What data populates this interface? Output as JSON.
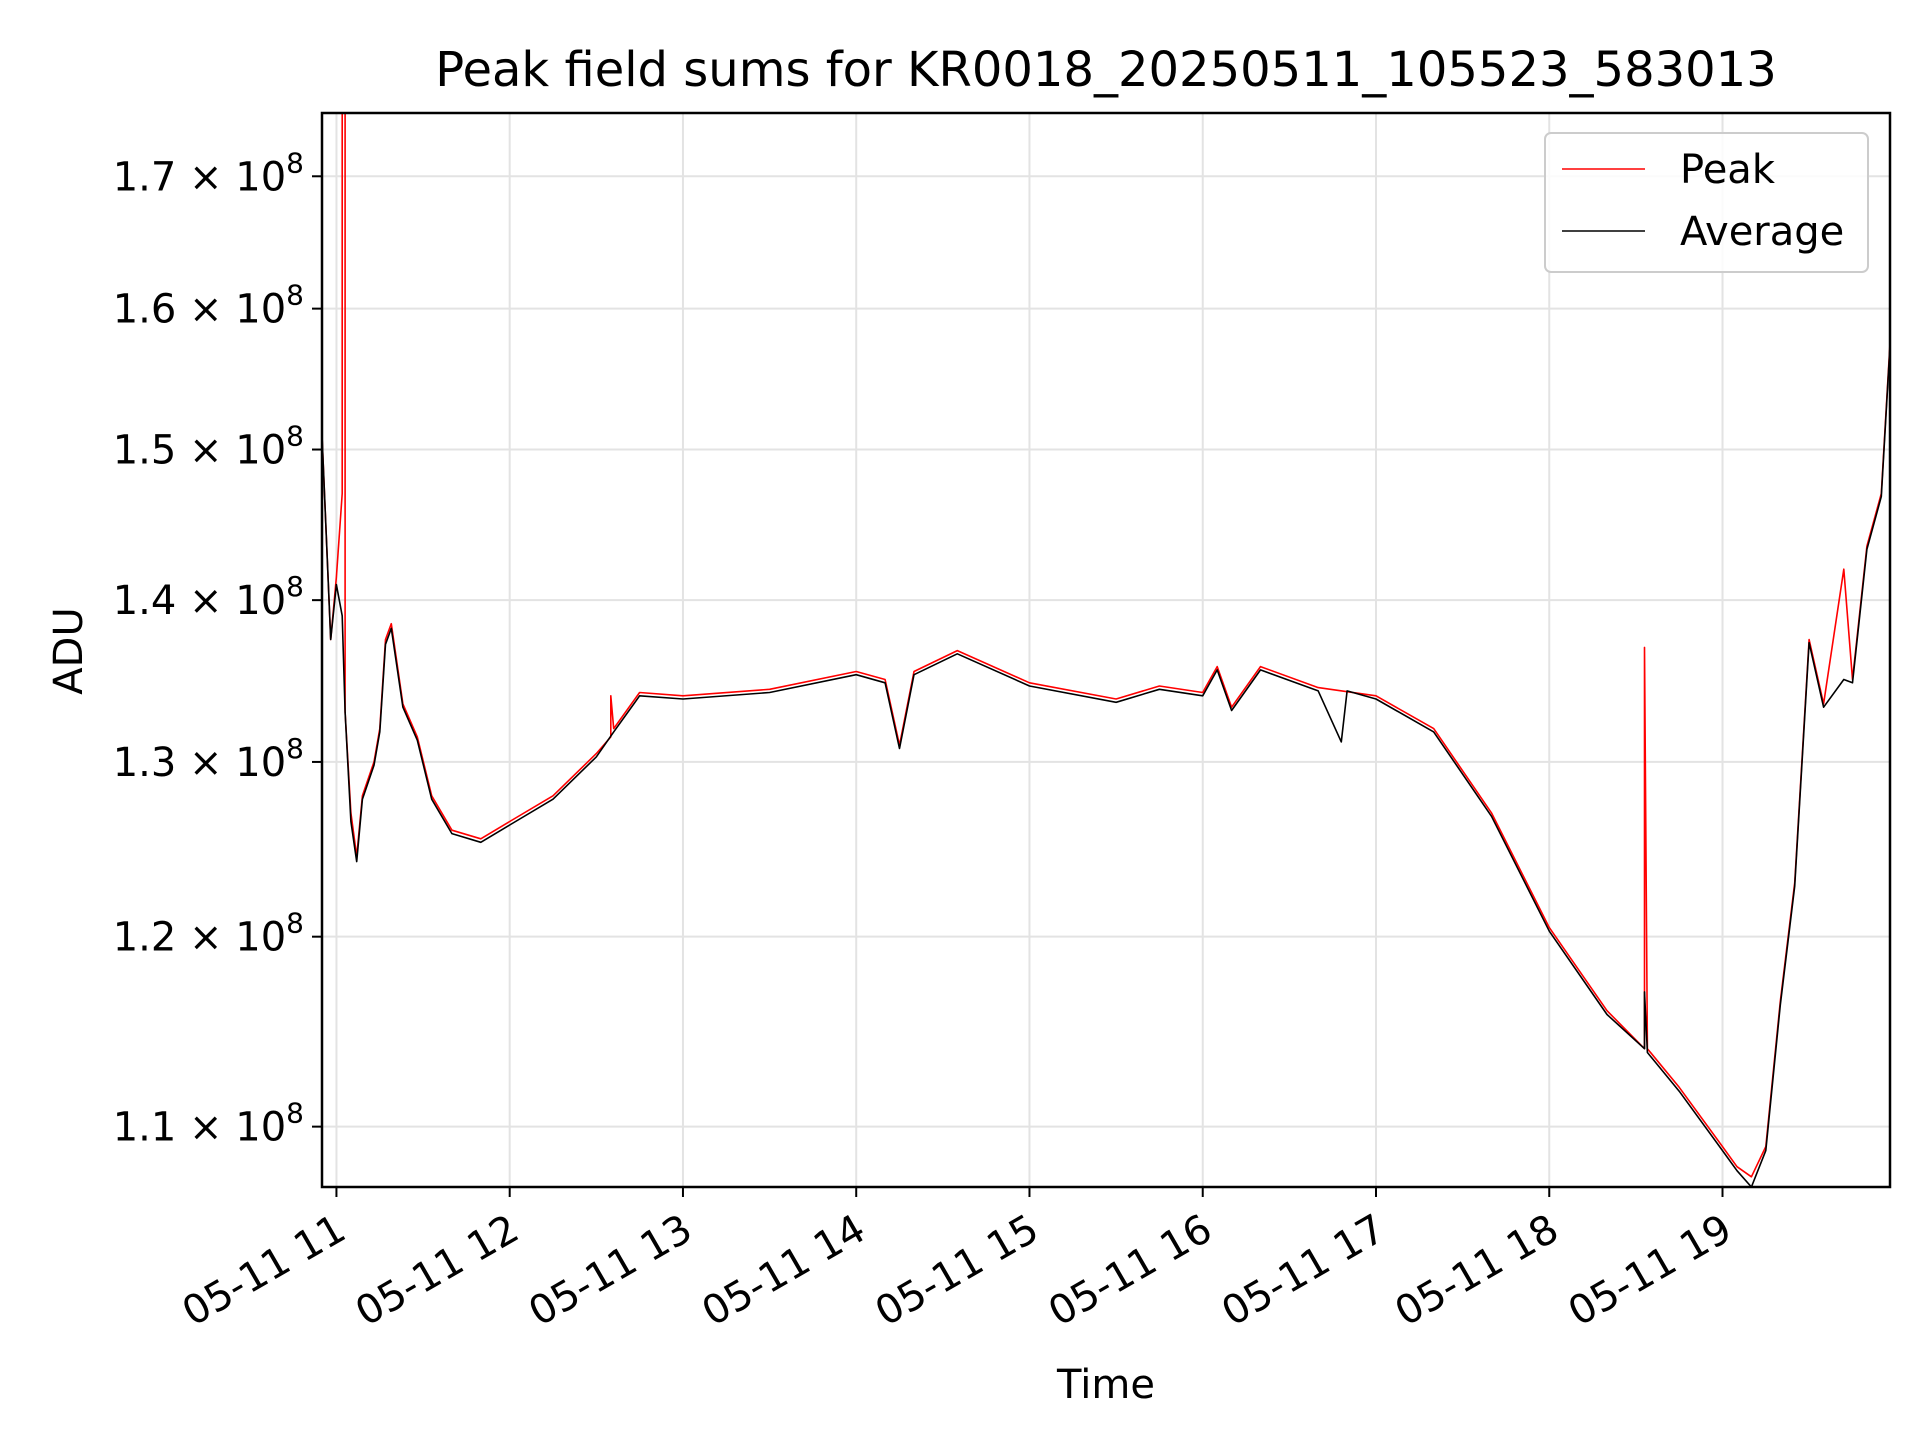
{
  "chart_data": {
    "type": "line",
    "title": "Peak field sums for KR0018_20250511_105523_583013",
    "xlabel": "Time",
    "ylabel": "ADU",
    "yscale": "log",
    "ylim": [
      107000000,
      175000000
    ],
    "xlim": [
      "2025-05-11 10:55",
      "2025-05-11 19:58"
    ],
    "grid": true,
    "legend_position": "top-right",
    "x_ticks": [
      {
        "t": "2025-05-11 11:00",
        "label": "05-11 11"
      },
      {
        "t": "2025-05-11 12:00",
        "label": "05-11 12"
      },
      {
        "t": "2025-05-11 13:00",
        "label": "05-11 13"
      },
      {
        "t": "2025-05-11 14:00",
        "label": "05-11 14"
      },
      {
        "t": "2025-05-11 15:00",
        "label": "05-11 15"
      },
      {
        "t": "2025-05-11 16:00",
        "label": "05-11 16"
      },
      {
        "t": "2025-05-11 17:00",
        "label": "05-11 17"
      },
      {
        "t": "2025-05-11 18:00",
        "label": "05-11 18"
      },
      {
        "t": "2025-05-11 19:00",
        "label": "05-11 19"
      }
    ],
    "y_ticks": [
      {
        "value": 110000000,
        "mantissa": "1.1",
        "base": "10",
        "exp": "8"
      },
      {
        "value": 120000000,
        "mantissa": "1.2",
        "base": "10",
        "exp": "8"
      },
      {
        "value": 130000000,
        "mantissa": "1.3",
        "base": "10",
        "exp": "8"
      },
      {
        "value": 140000000,
        "mantissa": "1.4",
        "base": "10",
        "exp": "8"
      },
      {
        "value": 150000000,
        "mantissa": "1.5",
        "base": "10",
        "exp": "8"
      },
      {
        "value": 160000000,
        "mantissa": "1.6",
        "base": "10",
        "exp": "8"
      },
      {
        "value": 170000000,
        "mantissa": "1.7",
        "base": "10",
        "exp": "8"
      }
    ],
    "series": [
      {
        "name": "Peak",
        "color": "#ff0000",
        "points": [
          [
            "2025-05-11 10:55",
            151000000
          ],
          [
            "2025-05-11 10:58",
            137500000
          ],
          [
            "2025-05-11 11:00",
            141500000
          ],
          [
            "2025-05-11 11:02",
            147000000
          ],
          [
            "2025-05-11 11:02",
            175000000
          ],
          [
            "2025-05-11 11:03",
            175000000
          ],
          [
            "2025-05-11 11:03",
            133000000
          ],
          [
            "2025-05-11 11:05",
            127000000
          ],
          [
            "2025-05-11 11:07",
            124500000
          ],
          [
            "2025-05-11 11:09",
            128000000
          ],
          [
            "2025-05-11 11:13",
            130000000
          ],
          [
            "2025-05-11 11:15",
            132000000
          ],
          [
            "2025-05-11 11:17",
            137500000
          ],
          [
            "2025-05-11 11:19",
            138500000
          ],
          [
            "2025-05-11 11:23",
            133500000
          ],
          [
            "2025-05-11 11:28",
            131500000
          ],
          [
            "2025-05-11 11:33",
            128000000
          ],
          [
            "2025-05-11 11:40",
            126000000
          ],
          [
            "2025-05-11 11:50",
            125500000
          ],
          [
            "2025-05-11 12:00",
            126500000
          ],
          [
            "2025-05-11 12:15",
            128000000
          ],
          [
            "2025-05-11 12:30",
            130500000
          ],
          [
            "2025-05-11 12:35",
            131500000
          ],
          [
            "2025-05-11 12:35",
            134000000
          ],
          [
            "2025-05-11 12:36",
            132000000
          ],
          [
            "2025-05-11 12:45",
            134200000
          ],
          [
            "2025-05-11 13:00",
            134000000
          ],
          [
            "2025-05-11 13:30",
            134400000
          ],
          [
            "2025-05-11 14:00",
            135500000
          ],
          [
            "2025-05-11 14:10",
            135000000
          ],
          [
            "2025-05-11 14:15",
            131000000
          ],
          [
            "2025-05-11 14:20",
            135500000
          ],
          [
            "2025-05-11 14:35",
            136800000
          ],
          [
            "2025-05-11 15:00",
            134800000
          ],
          [
            "2025-05-11 15:30",
            133800000
          ],
          [
            "2025-05-11 15:45",
            134600000
          ],
          [
            "2025-05-11 16:00",
            134200000
          ],
          [
            "2025-05-11 16:05",
            135800000
          ],
          [
            "2025-05-11 16:10",
            133300000
          ],
          [
            "2025-05-11 16:20",
            135800000
          ],
          [
            "2025-05-11 16:40",
            134500000
          ],
          [
            "2025-05-11 17:00",
            134000000
          ],
          [
            "2025-05-11 17:20",
            132000000
          ],
          [
            "2025-05-11 17:40",
            127000000
          ],
          [
            "2025-05-11 18:00",
            120500000
          ],
          [
            "2025-05-11 18:20",
            116000000
          ],
          [
            "2025-05-11 18:33",
            114000000
          ],
          [
            "2025-05-11 18:33",
            137000000
          ],
          [
            "2025-05-11 18:34",
            114000000
          ],
          [
            "2025-05-11 18:45",
            112000000
          ],
          [
            "2025-05-11 19:00",
            109000000
          ],
          [
            "2025-05-11 19:05",
            108000000
          ],
          [
            "2025-05-11 19:10",
            107500000
          ],
          [
            "2025-05-11 19:15",
            109000000
          ],
          [
            "2025-05-11 19:20",
            116500000
          ],
          [
            "2025-05-11 19:25",
            123000000
          ],
          [
            "2025-05-11 19:30",
            137500000
          ],
          [
            "2025-05-11 19:35",
            133500000
          ],
          [
            "2025-05-11 19:42",
            142000000
          ],
          [
            "2025-05-11 19:45",
            135000000
          ],
          [
            "2025-05-11 19:50",
            143500000
          ],
          [
            "2025-05-11 19:55",
            147000000
          ],
          [
            "2025-05-11 19:58",
            157500000
          ]
        ]
      },
      {
        "name": "Average",
        "color": "#000000",
        "points": [
          [
            "2025-05-11 10:55",
            151000000
          ],
          [
            "2025-05-11 10:58",
            137500000
          ],
          [
            "2025-05-11 11:00",
            141000000
          ],
          [
            "2025-05-11 11:02",
            139000000
          ],
          [
            "2025-05-11 11:03",
            133000000
          ],
          [
            "2025-05-11 11:05",
            126500000
          ],
          [
            "2025-05-11 11:07",
            124200000
          ],
          [
            "2025-05-11 11:09",
            127800000
          ],
          [
            "2025-05-11 11:13",
            129800000
          ],
          [
            "2025-05-11 11:15",
            131800000
          ],
          [
            "2025-05-11 11:17",
            137200000
          ],
          [
            "2025-05-11 11:19",
            138200000
          ],
          [
            "2025-05-11 11:23",
            133300000
          ],
          [
            "2025-05-11 11:28",
            131300000
          ],
          [
            "2025-05-11 11:33",
            127800000
          ],
          [
            "2025-05-11 11:40",
            125800000
          ],
          [
            "2025-05-11 11:50",
            125300000
          ],
          [
            "2025-05-11 12:00",
            126300000
          ],
          [
            "2025-05-11 12:15",
            127800000
          ],
          [
            "2025-05-11 12:30",
            130300000
          ],
          [
            "2025-05-11 12:36",
            131800000
          ],
          [
            "2025-05-11 12:45",
            134000000
          ],
          [
            "2025-05-11 13:00",
            133800000
          ],
          [
            "2025-05-11 13:30",
            134200000
          ],
          [
            "2025-05-11 14:00",
            135300000
          ],
          [
            "2025-05-11 14:10",
            134800000
          ],
          [
            "2025-05-11 14:15",
            130800000
          ],
          [
            "2025-05-11 14:20",
            135300000
          ],
          [
            "2025-05-11 14:35",
            136600000
          ],
          [
            "2025-05-11 15:00",
            134600000
          ],
          [
            "2025-05-11 15:30",
            133600000
          ],
          [
            "2025-05-11 15:45",
            134400000
          ],
          [
            "2025-05-11 16:00",
            134000000
          ],
          [
            "2025-05-11 16:05",
            135600000
          ],
          [
            "2025-05-11 16:10",
            133100000
          ],
          [
            "2025-05-11 16:20",
            135600000
          ],
          [
            "2025-05-11 16:40",
            134300000
          ],
          [
            "2025-05-11 16:48",
            131200000
          ],
          [
            "2025-05-11 16:50",
            134300000
          ],
          [
            "2025-05-11 17:00",
            133800000
          ],
          [
            "2025-05-11 17:20",
            131800000
          ],
          [
            "2025-05-11 17:40",
            126800000
          ],
          [
            "2025-05-11 18:00",
            120300000
          ],
          [
            "2025-05-11 18:20",
            115800000
          ],
          [
            "2025-05-11 18:33",
            114000000
          ],
          [
            "2025-05-11 18:33",
            117000000
          ],
          [
            "2025-05-11 18:34",
            113800000
          ],
          [
            "2025-05-11 18:45",
            111800000
          ],
          [
            "2025-05-11 19:00",
            108800000
          ],
          [
            "2025-05-11 19:05",
            107800000
          ],
          [
            "2025-05-11 19:10",
            107000000
          ],
          [
            "2025-05-11 19:15",
            108800000
          ],
          [
            "2025-05-11 19:20",
            116300000
          ],
          [
            "2025-05-11 19:25",
            122800000
          ],
          [
            "2025-05-11 19:30",
            137300000
          ],
          [
            "2025-05-11 19:35",
            133300000
          ],
          [
            "2025-05-11 19:42",
            135000000
          ],
          [
            "2025-05-11 19:45",
            134800000
          ],
          [
            "2025-05-11 19:50",
            143300000
          ],
          [
            "2025-05-11 19:55",
            146800000
          ],
          [
            "2025-05-11 19:58",
            157300000
          ]
        ]
      }
    ]
  }
}
